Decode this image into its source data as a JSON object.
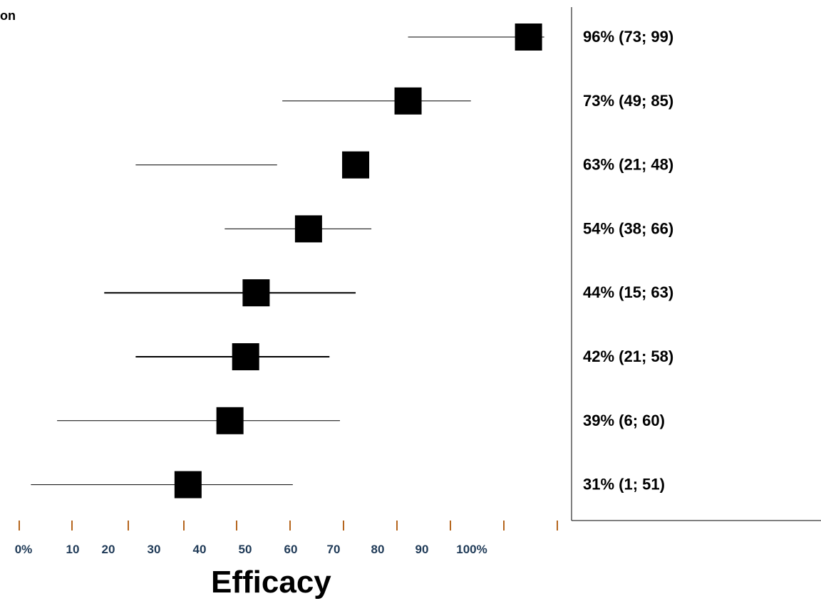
{
  "chart_data": {
    "type": "forest",
    "title": "",
    "partial_header": "on",
    "xlabel": "Efficacy",
    "tick_labels": [
      "0%",
      "10",
      "20",
      "30",
      "40",
      "50",
      "60",
      "70",
      "80",
      "90",
      "100%"
    ],
    "rows": [
      {
        "value": 96,
        "lower": 73,
        "upper": 99,
        "label": "96% (73; 99)"
      },
      {
        "value": 73,
        "lower": 49,
        "upper": 85,
        "label": "73% (49; 85)"
      },
      {
        "value": 63,
        "lower": 21,
        "upper": 48,
        "label": "63% (21; 48)"
      },
      {
        "value": 54,
        "lower": 38,
        "upper": 66,
        "label": "54% (38; 66)"
      },
      {
        "value": 44,
        "lower": 15,
        "upper": 63,
        "label": "44% (15; 63)"
      },
      {
        "value": 42,
        "lower": 21,
        "upper": 58,
        "label": "42% (21; 58)"
      },
      {
        "value": 39,
        "lower": 6,
        "upper": 60,
        "label": "39% (6; 60)"
      },
      {
        "value": 31,
        "lower": 1,
        "upper": 51,
        "label": "31% (1; 51)"
      }
    ],
    "colors": {
      "marker": "#000000",
      "tick": "#b5651d",
      "tick_label": "#1f3a57"
    }
  }
}
